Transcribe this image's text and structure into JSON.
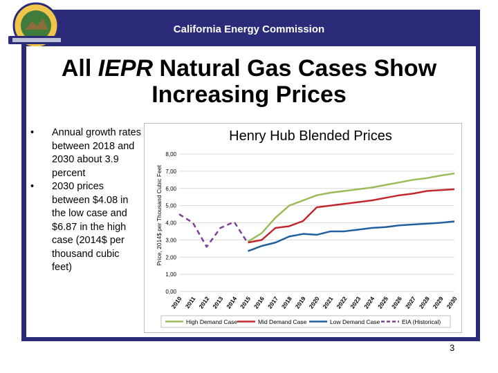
{
  "header": {
    "title": "California Energy Commission"
  },
  "slide": {
    "title_prefix": "All ",
    "title_italic": "IEPR",
    "title_rest": " Natural Gas Cases Show Increasing Prices",
    "bullets": [
      "Annual growth rates between 2018 and 2030 about 3.9 percent",
      "2030 prices between $4.08 in the low case and $6.87 in the high case (2014$ per thousand cubic feet)"
    ],
    "page_number": "3"
  },
  "chart_data": {
    "type": "line",
    "title": "Henry Hub Blended Prices",
    "ylabel": "Price, 2014$ per Thousand Cubic Feet",
    "xlabel": "",
    "ylim": [
      0,
      8
    ],
    "yticks": [
      "0,00",
      "1,00",
      "2,00",
      "3,00",
      "4,00",
      "5,00",
      "6,00",
      "7,00",
      "8,00"
    ],
    "categories": [
      "2010",
      "2011",
      "2012",
      "2013",
      "2014",
      "2015",
      "2016",
      "2017",
      "2018",
      "2019",
      "2020",
      "2021",
      "2022",
      "2023",
      "2024",
      "2025",
      "2026",
      "2027",
      "2028",
      "2029",
      "2030"
    ],
    "grid": true,
    "legend": "bottom",
    "colors": {
      "high": "#9bbb59",
      "mid": "#c0282d",
      "low": "#1f5f9f",
      "historical": "#7f3f97"
    },
    "series": [
      {
        "name": "High Demand Case",
        "key": "high",
        "values": [
          null,
          null,
          null,
          null,
          null,
          2.9,
          3.4,
          4.3,
          5.0,
          5.3,
          5.6,
          5.75,
          5.85,
          5.95,
          6.05,
          6.2,
          6.35,
          6.5,
          6.6,
          6.75,
          6.87
        ]
      },
      {
        "name": "Mid Demand Case",
        "key": "mid",
        "values": [
          null,
          null,
          null,
          null,
          null,
          2.85,
          3.0,
          3.7,
          3.8,
          4.1,
          4.9,
          5.0,
          5.1,
          5.2,
          5.3,
          5.45,
          5.6,
          5.7,
          5.85,
          5.9,
          5.95
        ]
      },
      {
        "name": "Low Demand Case",
        "key": "low",
        "values": [
          null,
          null,
          null,
          null,
          null,
          2.35,
          2.65,
          2.85,
          3.2,
          3.35,
          3.3,
          3.5,
          3.5,
          3.6,
          3.7,
          3.75,
          3.85,
          3.9,
          3.95,
          4.0,
          4.08
        ]
      },
      {
        "name": "EIA (Historical)",
        "key": "historical",
        "dashed": true,
        "values": [
          4.5,
          4.0,
          2.6,
          3.7,
          4.05,
          2.8,
          null,
          null,
          null,
          null,
          null,
          null,
          null,
          null,
          null,
          null,
          null,
          null,
          null,
          null,
          null
        ]
      }
    ]
  }
}
